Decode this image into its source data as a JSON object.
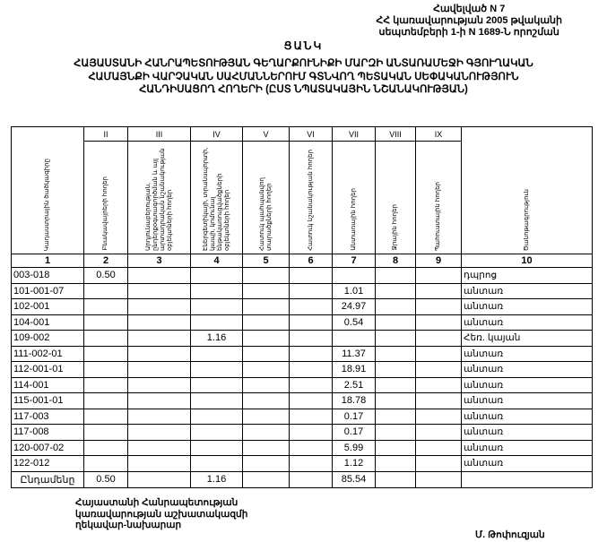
{
  "annex": {
    "line1": "Հավելված N 7",
    "line2": "ՀՀ կառավարության 2005 թվականի",
    "line3": "սեպտեմբերի 1-ի N 1689-Ն որոշման"
  },
  "title": "ՑԱՆԿ",
  "subtitle": {
    "line1": "ՀԱՅԱՍՏԱՆԻ ՀԱՆՐԱՊԵՏՈՒԹՅԱՆ ԳԵՂԱՐՔՈՒՆԻՔԻ ՄԱՐԶԻ ԱՆՏԱՌԱՄԵՋԻ ԳՅՈՒՂԱԿԱՆ",
    "line2": "ՀԱՄԱՅՆՔԻ ՎԱՐՉԱԿԱՆ ՍԱՀՄԱՆՆԵՐՈՒՄ ԳՏՆՎՈՂ ՊԵՏԱԿԱՆ ՍԵՓԱԿԱՆՈՒԹՅՈՒՆ",
    "line3": "ՀԱՆԴԻՍԱՑՈՂ ՀՈՂԵՐԻ (ԸՍՏ ՆՊԱՏԱԿԱՅԻՆ ՆՇԱՆԱԿՈՒԹՅԱՆ)"
  },
  "table": {
    "roman": [
      "",
      "II",
      "III",
      "IV",
      "V",
      "VI",
      "VII",
      "VIII",
      "IX",
      ""
    ],
    "headers": [
      "Կադաստրային ծածկագիրը",
      "Բնակավայրերի հողեր",
      "Արդյունաբերության, ընդերքօգտագործման և այլ արտադրական նշանակության օբյեկտների հողեր",
      "Էներգետիկայի, տրանսպորտի, կապի, կոմունալ ենթակառուցվածքների օբյեկտների հողեր",
      "Հատուկ պահպանվող տարածքների հողեր",
      "Հատուկ նշանակության հողեր",
      "Անտառային հողեր",
      "Ջրային հողեր",
      "Պահուստային հողեր",
      "Ծանոթագրություն"
    ],
    "numbers": [
      "1",
      "2",
      "3",
      "4",
      "5",
      "6",
      "7",
      "8",
      "9",
      "10"
    ],
    "rows": [
      {
        "code": "003-018",
        "c2": "0.50",
        "c4": "",
        "c7": "",
        "note": "դպրոց"
      },
      {
        "code": "101-001-07",
        "c2": "",
        "c4": "",
        "c7": "1.01",
        "note": "անտառ"
      },
      {
        "code": "102-001",
        "c2": "",
        "c4": "",
        "c7": "24.97",
        "note": "անտառ"
      },
      {
        "code": "104-001",
        "c2": "",
        "c4": "",
        "c7": "0.54",
        "note": "անտառ"
      },
      {
        "code": "109-002",
        "c2": "",
        "c4": "1.16",
        "c7": "",
        "note": "Հեռ. կայան"
      },
      {
        "code": "111-002-01",
        "c2": "",
        "c4": "",
        "c7": "11.37",
        "note": "անտառ"
      },
      {
        "code": "112-001-01",
        "c2": "",
        "c4": "",
        "c7": "18.91",
        "note": "անտառ"
      },
      {
        "code": "114-001",
        "c2": "",
        "c4": "",
        "c7": "2.51",
        "note": "անտառ"
      },
      {
        "code": "115-001-01",
        "c2": "",
        "c4": "",
        "c7": "18.78",
        "note": "անտառ"
      },
      {
        "code": "117-003",
        "c2": "",
        "c4": "",
        "c7": "0.17",
        "note": "անտառ"
      },
      {
        "code": "117-008",
        "c2": "",
        "c4": "",
        "c7": "0.17",
        "note": "անտառ"
      },
      {
        "code": "120-007-02",
        "c2": "",
        "c4": "",
        "c7": "5.99",
        "note": "անտառ"
      },
      {
        "code": "122-012",
        "c2": "",
        "c4": "",
        "c7": "1.12",
        "note": "անտառ"
      }
    ],
    "total": {
      "label": "Ընդամենը",
      "c2": "0.50",
      "c4": "1.16",
      "c7": "85.54"
    }
  },
  "footer": {
    "line1": "Հայաստանի Հանրապետության",
    "line2": "կառավարության աշխատակազմի",
    "line3": "ղեկավար-նախարար",
    "signature": "Մ. Թոփուզյան"
  }
}
